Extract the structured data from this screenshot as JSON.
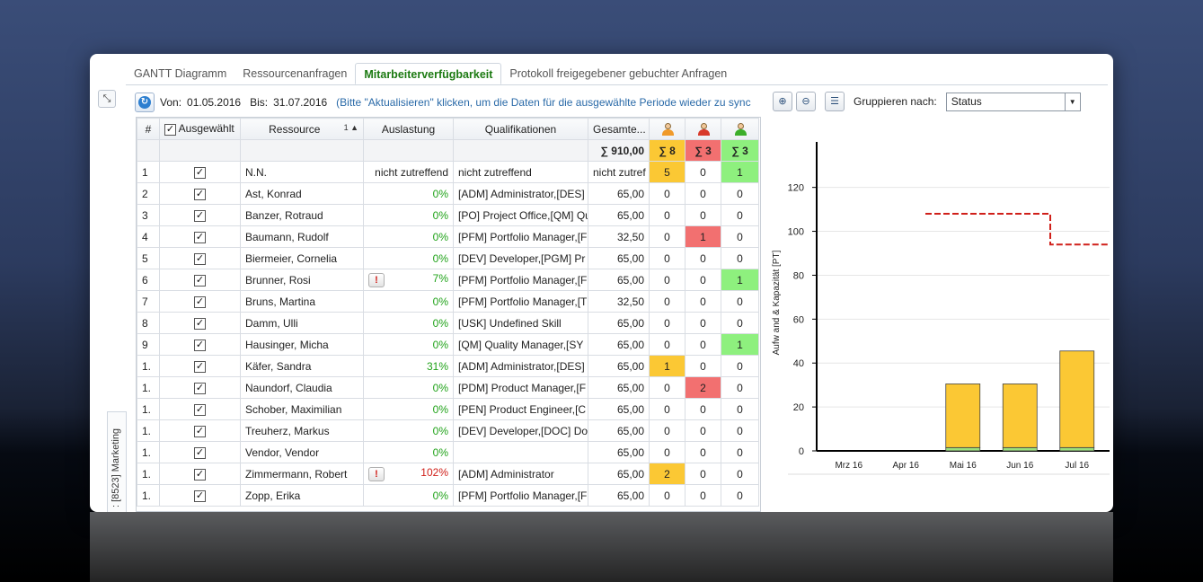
{
  "tabs": [
    {
      "label": "GANTT Diagramm",
      "active": false
    },
    {
      "label": "Ressourcenanfragen",
      "active": false
    },
    {
      "label": "Mitarbeiterverfügbarkeit",
      "active": true
    },
    {
      "label": "Protokoll freigegebener gebuchter Anfragen",
      "active": false
    }
  ],
  "sidebar": {
    "vertical_tab_label": ": [8523] Marketing"
  },
  "toolbar": {
    "from_label": "Von:",
    "from_value": "01.05.2016",
    "to_label": "Bis:",
    "to_value": "31.07.2016",
    "hint": "(Bitte \"Aktualisieren\" klicken, um die Daten für die ausgewählte Periode wieder zu sync"
  },
  "grid": {
    "headers": {
      "num": "#",
      "selected": "Ausgewählt",
      "resource": "Ressource",
      "resource_sort": "1 ▲",
      "utilization": "Auslastung",
      "qualifications": "Qualifikationen",
      "total": "Gesamte..."
    },
    "sum_row": {
      "total": "∑ 910,00",
      "s1": "∑ 8",
      "s2": "∑ 3",
      "s3": "∑ 3"
    },
    "rows": [
      {
        "num": "1",
        "name": "N.N.",
        "util": "nicht zutreffend",
        "qual": "nicht zutreffend",
        "total": "nicht zutref",
        "a": "5",
        "b": "0",
        "c": "1",
        "warn": false,
        "util_color": "plain",
        "a_bg": "yel",
        "b_bg": "",
        "c_bg": "grn"
      },
      {
        "num": "2",
        "name": "Ast, Konrad",
        "util": "0%",
        "qual": "[ADM] Administrator,[DES]",
        "total": "65,00",
        "a": "0",
        "b": "0",
        "c": "0",
        "warn": false,
        "util_color": "green",
        "a_bg": "",
        "b_bg": "",
        "c_bg": ""
      },
      {
        "num": "3",
        "name": "Banzer, Rotraud",
        "util": "0%",
        "qual": "[PO] Project Office,[QM] Qu",
        "total": "65,00",
        "a": "0",
        "b": "0",
        "c": "0",
        "warn": false,
        "util_color": "green",
        "a_bg": "",
        "b_bg": "",
        "c_bg": ""
      },
      {
        "num": "4",
        "name": "Baumann, Rudolf",
        "util": "0%",
        "qual": "[PFM] Portfolio Manager,[F",
        "total": "32,50",
        "a": "0",
        "b": "1",
        "c": "0",
        "warn": false,
        "util_color": "green",
        "a_bg": "",
        "b_bg": "red",
        "c_bg": ""
      },
      {
        "num": "5",
        "name": "Biermeier, Cornelia",
        "util": "0%",
        "qual": "[DEV] Developer,[PGM] Pr",
        "total": "65,00",
        "a": "0",
        "b": "0",
        "c": "0",
        "warn": false,
        "util_color": "green",
        "a_bg": "",
        "b_bg": "",
        "c_bg": ""
      },
      {
        "num": "6",
        "name": "Brunner, Rosi",
        "util": "7%",
        "qual": "[PFM] Portfolio Manager,[F",
        "total": "65,00",
        "a": "0",
        "b": "0",
        "c": "1",
        "warn": true,
        "util_color": "green",
        "a_bg": "",
        "b_bg": "",
        "c_bg": "grn"
      },
      {
        "num": "7",
        "name": "Bruns, Martina",
        "util": "0%",
        "qual": "[PFM] Portfolio Manager,[T",
        "total": "32,50",
        "a": "0",
        "b": "0",
        "c": "0",
        "warn": false,
        "util_color": "green",
        "a_bg": "",
        "b_bg": "",
        "c_bg": ""
      },
      {
        "num": "8",
        "name": "Damm, Ulli",
        "util": "0%",
        "qual": "[USK] Undefined Skill",
        "total": "65,00",
        "a": "0",
        "b": "0",
        "c": "0",
        "warn": false,
        "util_color": "green",
        "a_bg": "",
        "b_bg": "",
        "c_bg": ""
      },
      {
        "num": "9",
        "name": "Hausinger, Micha",
        "util": "0%",
        "qual": "[QM] Quality Manager,[SY",
        "total": "65,00",
        "a": "0",
        "b": "0",
        "c": "1",
        "warn": false,
        "util_color": "green",
        "a_bg": "",
        "b_bg": "",
        "c_bg": "grn"
      },
      {
        "num": "1.",
        "name": "Käfer, Sandra",
        "util": "31%",
        "qual": "[ADM] Administrator,[DES]",
        "total": "65,00",
        "a": "1",
        "b": "0",
        "c": "0",
        "warn": false,
        "util_color": "green",
        "a_bg": "yel",
        "b_bg": "",
        "c_bg": ""
      },
      {
        "num": "1.",
        "name": "Naundorf, Claudia",
        "util": "0%",
        "qual": "[PDM] Product Manager,[F",
        "total": "65,00",
        "a": "0",
        "b": "2",
        "c": "0",
        "warn": false,
        "util_color": "green",
        "a_bg": "",
        "b_bg": "red",
        "c_bg": ""
      },
      {
        "num": "1.",
        "name": "Schober, Maximilian",
        "util": "0%",
        "qual": "[PEN] Product Engineer,[C",
        "total": "65,00",
        "a": "0",
        "b": "0",
        "c": "0",
        "warn": false,
        "util_color": "green",
        "a_bg": "",
        "b_bg": "",
        "c_bg": ""
      },
      {
        "num": "1.",
        "name": "Treuherz, Markus",
        "util": "0%",
        "qual": "[DEV] Developer,[DOC] Do",
        "total": "65,00",
        "a": "0",
        "b": "0",
        "c": "0",
        "warn": false,
        "util_color": "green",
        "a_bg": "",
        "b_bg": "",
        "c_bg": ""
      },
      {
        "num": "1.",
        "name": "Vendor, Vendor",
        "util": "0%",
        "qual": "",
        "total": "65,00",
        "a": "0",
        "b": "0",
        "c": "0",
        "warn": false,
        "util_color": "green",
        "a_bg": "",
        "b_bg": "",
        "c_bg": ""
      },
      {
        "num": "1.",
        "name": "Zimmermann, Robert",
        "util": "102%",
        "qual": "[ADM] Administrator",
        "total": "65,00",
        "a": "2",
        "b": "0",
        "c": "0",
        "warn": true,
        "util_color": "red",
        "a_bg": "yel",
        "b_bg": "",
        "c_bg": ""
      },
      {
        "num": "1.",
        "name": "Zopp, Erika",
        "util": "0%",
        "qual": "[PFM] Portfolio Manager,[F",
        "total": "65,00",
        "a": "0",
        "b": "0",
        "c": "0",
        "warn": false,
        "util_color": "green",
        "a_bg": "",
        "b_bg": "",
        "c_bg": ""
      }
    ],
    "warn_glyph": "!",
    "check_glyph": "✓"
  },
  "chart_panel": {
    "group_label": "Gruppieren nach:",
    "group_value": "Status",
    "zoom_in_icon": "zoom-in-icon",
    "zoom_out_icon": "zoom-out-icon",
    "list_icon": "list-icon"
  },
  "colors": {
    "yellow": "#fbc834",
    "red": "#f27070",
    "green": "#8ef07e",
    "accent": "#1c7a12",
    "capacity_line": "#d0201a"
  },
  "chart_data": {
    "type": "bar",
    "categories": [
      "Mrz 16",
      "Apr 16",
      "Mai 16",
      "Jun 16",
      "Jul 16"
    ],
    "series": [
      {
        "values": [
          0,
          0,
          29,
          29,
          44
        ],
        "color": "#fbc834"
      },
      {
        "values": [
          0,
          0,
          1.5,
          1.5,
          1.5
        ],
        "color": "#9be07c"
      }
    ],
    "capacity": [
      null,
      null,
      108,
      108,
      94
    ],
    "ylabel": "Aufw and & Kapazität [PT]",
    "yticks": [
      0,
      20,
      40,
      60,
      80,
      100,
      120
    ],
    "ylim": [
      0,
      135
    ],
    "grid": true
  }
}
